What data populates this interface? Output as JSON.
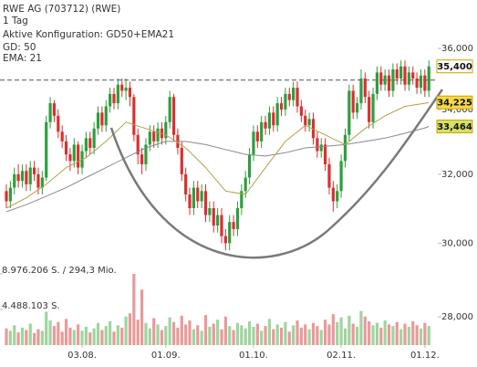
{
  "chart_data": {
    "type": "candlestick",
    "title": "RWE AG (703712) (RWE)",
    "subtitle": "1 Tag",
    "annotation": "Aktive Konfiguration: GD50+EMA21",
    "categories": [
      null,
      null,
      null,
      null,
      null,
      null,
      null,
      null,
      null,
      null,
      null,
      null,
      null,
      null,
      null,
      null,
      null,
      null,
      null,
      "03.08.",
      null,
      null,
      null,
      null,
      null,
      null,
      null,
      null,
      null,
      null,
      null,
      null,
      null,
      null,
      null,
      null,
      null,
      null,
      null,
      null,
      "01.09.",
      null,
      null,
      null,
      null,
      null,
      null,
      null,
      null,
      null,
      null,
      null,
      null,
      null,
      null,
      null,
      null,
      null,
      null,
      null,
      null,
      null,
      "01.10.",
      null,
      null,
      null,
      null,
      null,
      null,
      null,
      null,
      null,
      null,
      null,
      null,
      null,
      null,
      null,
      null,
      null,
      null,
      null,
      null,
      null,
      "02.11.",
      null,
      null,
      null,
      null,
      null,
      null,
      null,
      null,
      null,
      null,
      null,
      null,
      null,
      null,
      null,
      null,
      null,
      null,
      null,
      null,
      "01.12.",
      null
    ],
    "open": [
      31.5,
      31.2,
      31.6,
      32.0,
      31.8,
      32.1,
      31.7,
      32.2,
      32.0,
      31.6,
      31.9,
      33.6,
      34.2,
      33.8,
      33.3,
      33.0,
      32.6,
      32.4,
      32.9,
      32.2,
      32.7,
      33.1,
      32.8,
      33.4,
      33.9,
      33.5,
      34.1,
      34.5,
      34.2,
      34.8,
      34.6,
      34.7,
      34.4,
      33.2,
      32.6,
      32.3,
      32.9,
      33.3,
      33.0,
      33.4,
      33.1,
      33.6,
      34.4,
      33.2,
      32.8,
      32.0,
      31.4,
      31.0,
      31.6,
      31.2,
      31.5,
      30.8,
      31.0,
      30.5,
      30.8,
      30.2,
      30.0,
      30.6,
      30.4,
      31.0,
      31.5,
      31.9,
      32.6,
      33.3,
      33.0,
      33.6,
      33.4,
      33.9,
      33.5,
      34.2,
      34.0,
      34.5,
      34.3,
      34.7,
      34.1,
      33.8,
      33.5,
      33.7,
      33.1,
      32.7,
      32.9,
      32.3,
      31.6,
      31.2,
      31.5,
      32.4,
      33.2,
      34.6,
      33.9,
      34.2,
      35.0,
      34.4,
      33.6,
      34.5,
      35.2,
      34.8,
      35.1,
      34.6,
      35.3,
      35.0,
      35.4,
      34.8,
      35.2,
      35.0,
      34.7,
      35.1,
      34.6
    ],
    "high": [
      31.7,
      31.8,
      32.2,
      32.3,
      32.3,
      32.3,
      32.4,
      32.4,
      32.2,
      32.1,
      33.8,
      34.4,
      34.3,
      34.0,
      33.5,
      33.2,
      32.8,
      33.1,
      33.0,
      32.9,
      33.3,
      33.3,
      33.6,
      34.1,
      34.1,
      34.3,
      34.7,
      34.7,
      35.0,
      35.0,
      35.0,
      34.9,
      34.5,
      33.4,
      32.8,
      33.1,
      33.5,
      33.5,
      33.6,
      33.6,
      33.8,
      34.6,
      34.5,
      33.4,
      33.0,
      32.2,
      31.6,
      31.8,
      31.8,
      31.7,
      31.7,
      31.2,
      31.2,
      31.0,
      31.0,
      30.4,
      30.8,
      30.8,
      31.2,
      31.7,
      32.1,
      32.8,
      33.5,
      33.5,
      33.8,
      33.8,
      34.1,
      34.1,
      34.4,
      34.4,
      34.7,
      34.7,
      34.9,
      34.9,
      34.3,
      34.0,
      33.9,
      33.9,
      33.3,
      33.1,
      33.1,
      32.5,
      31.8,
      31.7,
      32.6,
      33.4,
      34.8,
      34.8,
      34.4,
      35.3,
      35.2,
      34.6,
      34.7,
      35.4,
      35.4,
      35.3,
      35.3,
      35.5,
      35.5,
      35.6,
      35.6,
      35.4,
      35.4,
      35.2,
      35.3,
      35.3,
      35.6
    ],
    "low": [
      31.0,
      31.0,
      31.4,
      31.6,
      31.6,
      31.5,
      31.5,
      31.8,
      31.4,
      31.4,
      31.8,
      33.4,
      33.6,
      33.1,
      32.8,
      32.4,
      32.1,
      32.2,
      32.0,
      32.0,
      32.5,
      32.6,
      32.6,
      33.2,
      33.3,
      33.3,
      33.9,
      34.0,
      34.0,
      34.4,
      34.3,
      34.1,
      33.0,
      32.3,
      32.0,
      32.1,
      32.7,
      32.8,
      32.8,
      32.9,
      32.9,
      33.4,
      33.0,
      32.6,
      31.8,
      31.2,
      30.8,
      30.8,
      31.0,
      31.0,
      30.6,
      30.6,
      30.3,
      30.3,
      30.0,
      29.8,
      29.8,
      30.2,
      30.2,
      30.8,
      31.3,
      31.7,
      32.4,
      32.8,
      32.8,
      33.2,
      33.2,
      33.3,
      33.3,
      33.8,
      33.8,
      34.1,
      34.1,
      33.9,
      33.6,
      33.3,
      33.3,
      32.9,
      32.5,
      32.5,
      32.1,
      31.4,
      30.9,
      31.0,
      31.3,
      32.2,
      33.0,
      33.7,
      33.7,
      34.0,
      34.2,
      33.4,
      33.4,
      34.3,
      34.6,
      34.6,
      34.4,
      34.4,
      34.8,
      34.8,
      34.6,
      34.6,
      34.8,
      34.5,
      34.5,
      34.4,
      34.4
    ],
    "close": [
      31.2,
      31.6,
      32.0,
      31.8,
      32.1,
      31.7,
      32.2,
      32.0,
      31.6,
      31.9,
      33.6,
      34.2,
      33.8,
      33.3,
      33.0,
      32.6,
      32.4,
      32.9,
      32.2,
      32.7,
      33.1,
      32.8,
      33.4,
      33.9,
      33.5,
      34.1,
      34.5,
      34.2,
      34.8,
      34.6,
      34.7,
      34.4,
      33.2,
      32.6,
      32.3,
      32.9,
      33.3,
      33.0,
      33.4,
      33.1,
      33.6,
      34.4,
      33.2,
      32.8,
      32.0,
      31.4,
      31.0,
      31.6,
      31.2,
      31.5,
      30.8,
      31.0,
      30.5,
      30.8,
      30.2,
      30.0,
      30.6,
      30.4,
      31.0,
      31.5,
      31.9,
      32.6,
      33.3,
      33.0,
      33.6,
      33.4,
      33.9,
      33.5,
      34.2,
      34.0,
      34.5,
      34.3,
      34.7,
      34.1,
      33.8,
      33.5,
      33.7,
      33.1,
      32.7,
      32.9,
      32.3,
      31.6,
      31.2,
      31.5,
      32.4,
      33.2,
      34.6,
      33.9,
      34.2,
      35.0,
      34.4,
      33.6,
      34.5,
      35.2,
      34.8,
      35.1,
      34.6,
      35.3,
      35.0,
      35.4,
      34.8,
      35.2,
      35.0,
      34.7,
      35.1,
      34.6,
      35.4
    ],
    "volume": [
      2100000,
      1800000,
      2500000,
      1600000,
      2200000,
      1900000,
      2700000,
      1500000,
      2000000,
      1800000,
      4200000,
      3100000,
      2400000,
      2900000,
      1700000,
      3300000,
      2200000,
      1900000,
      2600000,
      1800000,
      2300000,
      1600000,
      2100000,
      2800000,
      1900000,
      2400000,
      3000000,
      1700000,
      2500000,
      2200000,
      3600000,
      4000000,
      8976206,
      3200000,
      7000000,
      2800000,
      2100000,
      3400000,
      2600000,
      1900000,
      2400000,
      3500000,
      2900000,
      2200000,
      3700000,
      2600000,
      3100000,
      2000000,
      2500000,
      1800000,
      3800000,
      2300000,
      2700000,
      3200000,
      2000000,
      3600000,
      2400000,
      1900000,
      2800000,
      2500000,
      2100000,
      3000000,
      2300000,
      2700000,
      1800000,
      2400000,
      3300000,
      2000000,
      2600000,
      2200000,
      2900000,
      1700000,
      2500000,
      3100000,
      2200000,
      2600000,
      2000000,
      2800000,
      2400000,
      1900000,
      3200000,
      2600000,
      3900000,
      2900000,
      3500000,
      2100000,
      3700000,
      2700000,
      2300000,
      4300000,
      3600000,
      3000000,
      2500000,
      2800000,
      2200000,
      3100000,
      2600000,
      2400000,
      2900000,
      2000000,
      2700000,
      2300000,
      3000000,
      2500000,
      2100000,
      2800000,
      2400000
    ],
    "up_color": "#2e9e3e",
    "down_color": "#d93030",
    "volume_up_color": "#9fd49f",
    "volume_down_color": "#e89a9a",
    "log_scale": true,
    "grid": false,
    "ylim": [
      27.27,
      37.67
    ],
    "yticks": [
      {
        "value": 28,
        "label": "28,000"
      },
      {
        "value": 30,
        "label": "30,000"
      },
      {
        "value": 32,
        "label": "32,000"
      },
      {
        "value": 34,
        "label": "34,000"
      },
      {
        "value": 36,
        "label": "36,000"
      }
    ],
    "volume_lim": [
      0,
      8976206
    ],
    "volume_ticks": [
      {
        "value": 8976206,
        "label": "8.976.206 S. / 294,3 Mio."
      },
      {
        "value": 4488103,
        "label": "4.488.103 S."
      }
    ],
    "resistance": 34.95,
    "moving_averages": [
      {
        "name": "GD: 50",
        "color": "#8a8a8a",
        "x": [
          0,
          5,
          10,
          15,
          20,
          25,
          30,
          35,
          40,
          45,
          50,
          55,
          60,
          65,
          70,
          75,
          80,
          85,
          90,
          95,
          100,
          105,
          106
        ],
        "values": [
          30.9,
          31.1,
          31.35,
          31.6,
          31.9,
          32.2,
          32.5,
          32.8,
          33.0,
          33.0,
          32.9,
          32.75,
          32.6,
          32.55,
          32.65,
          32.8,
          32.85,
          32.9,
          33.0,
          33.1,
          33.25,
          33.42,
          33.464
        ]
      },
      {
        "name": "EMA: 21",
        "color": "#b3a24a",
        "x": [
          0,
          5,
          10,
          15,
          20,
          25,
          30,
          35,
          40,
          45,
          50,
          55,
          60,
          65,
          70,
          75,
          80,
          85,
          90,
          95,
          100,
          105,
          106
        ],
        "values": [
          31.0,
          31.3,
          31.7,
          32.2,
          32.5,
          33.0,
          33.6,
          33.4,
          33.2,
          32.8,
          32.2,
          31.5,
          31.4,
          32.2,
          33.0,
          33.5,
          33.2,
          32.9,
          33.4,
          33.8,
          34.1,
          34.2,
          34.225
        ]
      }
    ],
    "last_labels": [
      {
        "value": 35.4,
        "label": "35,400",
        "color": "#ffffff"
      },
      {
        "value": 34.225,
        "label": "34,225",
        "color": "#f5d94a"
      },
      {
        "value": 33.464,
        "label": "33,464",
        "color": "#d6df6a"
      }
    ]
  }
}
